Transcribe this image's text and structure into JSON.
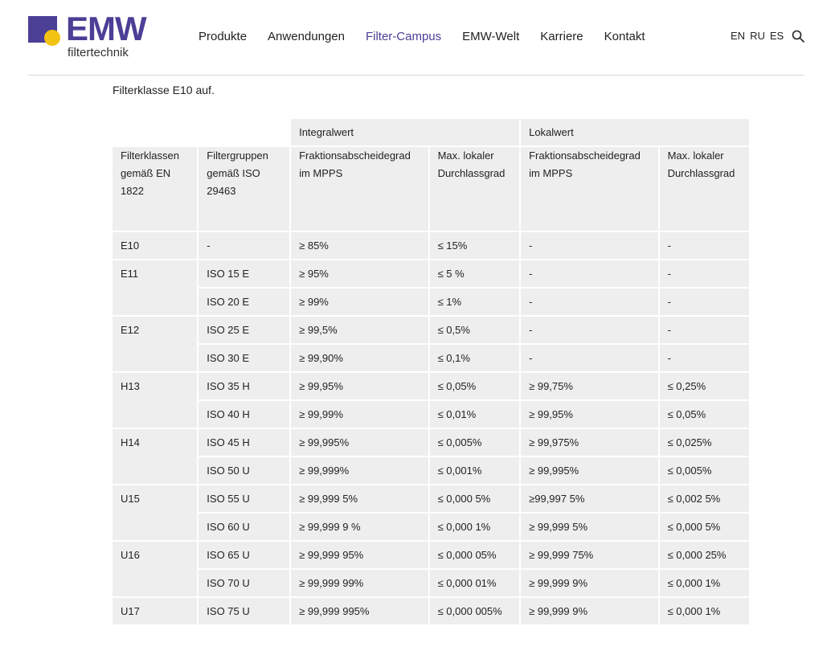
{
  "brand": {
    "name": "EMW",
    "sub": "filtertechnik",
    "purple": "#4b3f96",
    "yellow": "#f2c313"
  },
  "nav": {
    "items": [
      {
        "label": "Produkte"
      },
      {
        "label": "Anwendungen"
      },
      {
        "label": "Filter-Campus",
        "active": true
      },
      {
        "label": "EMW-Welt"
      },
      {
        "label": "Karriere"
      },
      {
        "label": "Kontakt"
      }
    ],
    "languages": [
      "EN",
      "RU",
      "ES"
    ],
    "search_icon": "search-icon"
  },
  "intro": {
    "text": "Filterklasse E10 auf."
  },
  "table": {
    "groups": {
      "integral": "Integralwert",
      "local": "Lokalwert"
    },
    "headers": {
      "class_en": "Filterklassen gemäß EN 1822",
      "group_iso": "Filtergruppen gemäß ISO 29463",
      "integral_eff": "Fraktionsabscheidegrad im MPPS",
      "integral_pen": "Max. lokaler Durchlassgrad",
      "local_eff": "Fraktionsabscheidegrad im MPPS",
      "local_pen": "Max. lokaler Durchlassgrad"
    },
    "rows": [
      {
        "cls": "E10",
        "iso": "-",
        "ie": "≥ 85%",
        "ip": "≤ 15%",
        "le": "-",
        "lp": "-"
      },
      {
        "cls": "E11",
        "iso": "ISO 15 E",
        "ie": "≥ 95%",
        "ip": "≤ 5 %",
        "le": "-",
        "lp": "-"
      },
      {
        "cls": "",
        "iso": "ISO 20 E",
        "ie": "≥ 99%",
        "ip": "≤ 1%",
        "le": "-",
        "lp": "-"
      },
      {
        "cls": "E12",
        "iso": "ISO 25 E",
        "ie": "≥ 99,5%",
        "ip": "≤ 0,5%",
        "le": "-",
        "lp": "-"
      },
      {
        "cls": "",
        "iso": "ISO 30 E",
        "ie": "≥ 99,90%",
        "ip": "≤ 0,1%",
        "le": "-",
        "lp": "-"
      },
      {
        "cls": "H13",
        "iso": "ISO 35 H",
        "ie": "≥ 99,95%",
        "ip": "≤ 0,05%",
        "le": "≥ 99,75%",
        "lp": "≤ 0,25%"
      },
      {
        "cls": "",
        "iso": "ISO 40 H",
        "ie": "≥ 99,99%",
        "ip": "≤ 0,01%",
        "le": "≥ 99,95%",
        "lp": "≤ 0,05%"
      },
      {
        "cls": "H14",
        "iso": "ISO 45 H",
        "ie": "≥ 99,995%",
        "ip": "≤ 0,005%",
        "le": "≥ 99,975%",
        "lp": "≤ 0,025%"
      },
      {
        "cls": "",
        "iso": "ISO 50 U",
        "iso_bold": true,
        "ie": "≥ 99,999%",
        "ip": "≤ 0,001%",
        "le": "≥ 99,995%",
        "lp": "≤ 0,005%"
      },
      {
        "cls": "U15",
        "iso": "ISO 55 U",
        "ie": "≥ 99,999 5%",
        "ip": "≤ 0,000 5%",
        "le": "≥99,997 5%",
        "lp": "≤ 0,002 5%"
      },
      {
        "cls": "",
        "iso": "ISO 60 U",
        "ie": "≥ 99,999 9 %",
        "ip": "≤ 0,000 1%",
        "le": "≥ 99,999 5%",
        "lp": "≤ 0,000 5%"
      },
      {
        "cls": "U16",
        "iso": "ISO 65 U",
        "ie": "≥ 99,999 95%",
        "ip": "≤ 0,000 05%",
        "le": "≥ 99,999 75%",
        "lp": "≤ 0,000 25%"
      },
      {
        "cls": "",
        "iso": "ISO 70 U",
        "ie": "≥ 99,999 99%",
        "ip": "≤ 0,000 01%",
        "le": "≥ 99,999 9%",
        "lp": "≤ 0,000 1%"
      },
      {
        "cls": "U17",
        "iso": "ISO 75 U",
        "ie": "≥ 99,999 995%",
        "ip": "≤ 0,000 005%",
        "le": "≥ 99,999 9%",
        "lp": "≤ 0,000 1%"
      }
    ]
  }
}
